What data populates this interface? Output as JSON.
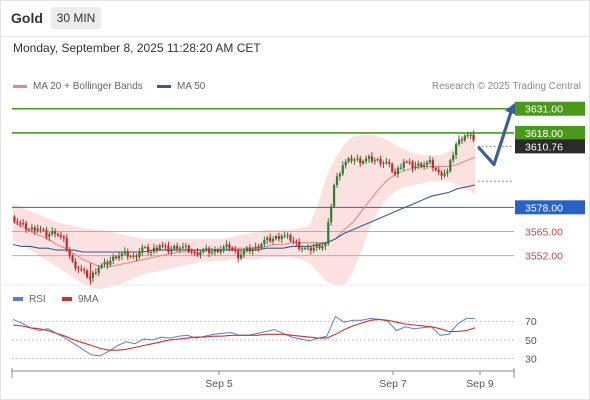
{
  "header": {
    "asset": "Gold",
    "timeframe": "30 MIN",
    "datetime": "Monday, September 8, 2025 11:28:20 AM CET"
  },
  "legend": {
    "ma20_label": "MA 20 + Bollinger Bands",
    "ma50_label": "MA 50",
    "credit": "Research © 2025 Trading Central",
    "rsi_label": "RSI",
    "rsi9_label": "9MA"
  },
  "colors": {
    "candle_up": "#2e7d32",
    "candle_down": "#c62828",
    "ma20": "#e88888",
    "bollinger_fill": "#fbd7d7",
    "ma50": "#3c5a8c",
    "resistance": "#4a9a1a",
    "support": "#e89a9a",
    "pivot": "#2962c4",
    "arrow": "#3c5f96",
    "rsi": "#5b7fd6",
    "rsi_ma": "#d32f2f"
  },
  "chart_data": [
    {
      "type": "candlestick",
      "x_axis": {
        "labels": [
          "Sep 5",
          "Sep 7",
          "Sep 9"
        ]
      },
      "y_axis": {
        "range": [
          3540,
          3640
        ]
      },
      "current_price": {
        "value": 3610.76,
        "label": "3610.76"
      },
      "levels": [
        {
          "value": 3631.0,
          "label": "3631.00",
          "kind": "resistance"
        },
        {
          "value": 3618.0,
          "label": "3618.00",
          "kind": "resistance"
        },
        {
          "value": 3578.0,
          "label": "3578.00",
          "kind": "pivot"
        },
        {
          "value": 3565.0,
          "label": "3565.00",
          "kind": "support"
        },
        {
          "value": 3552.0,
          "label": "3552.00",
          "kind": "support"
        }
      ],
      "price_path": [
        3573,
        3569,
        3566,
        3567,
        3563,
        3565,
        3560,
        3548,
        3544,
        3540,
        3546,
        3548,
        3552,
        3553,
        3551,
        3556,
        3554,
        3558,
        3555,
        3557,
        3556,
        3553,
        3555,
        3554,
        3556,
        3557,
        3552,
        3555,
        3556,
        3560,
        3561,
        3563,
        3561,
        3557,
        3555,
        3557,
        3558,
        3590,
        3601,
        3604,
        3603,
        3604,
        3603,
        3602,
        3596,
        3603,
        3600,
        3601,
        3602,
        3596,
        3597,
        3612,
        3617,
        3615
      ],
      "ma20": [
        3570,
        3568,
        3565,
        3563,
        3561,
        3558,
        3556,
        3553,
        3550,
        3548,
        3546,
        3546,
        3547,
        3548,
        3549,
        3550,
        3551,
        3552,
        3553,
        3554,
        3554,
        3555,
        3555,
        3555,
        3555,
        3556,
        3556,
        3556,
        3556,
        3557,
        3558,
        3558,
        3559,
        3559,
        3559,
        3559,
        3559,
        3561,
        3566,
        3570,
        3576,
        3582,
        3588,
        3593,
        3596,
        3598,
        3599,
        3600,
        3600,
        3600,
        3600,
        3601,
        3603,
        3605
      ],
      "bollinger_upper": [
        3580,
        3578,
        3576,
        3574,
        3572,
        3570,
        3569,
        3568,
        3567,
        3566,
        3566,
        3565,
        3564,
        3563,
        3562,
        3561,
        3561,
        3561,
        3561,
        3561,
        3561,
        3561,
        3561,
        3561,
        3561,
        3562,
        3563,
        3564,
        3565,
        3566,
        3566,
        3566,
        3566,
        3567,
        3568,
        3580,
        3595,
        3605,
        3612,
        3616,
        3617,
        3617,
        3616,
        3614,
        3611,
        3609,
        3607,
        3606,
        3606,
        3606,
        3608,
        3613,
        3618,
        3620
      ],
      "bollinger_lower": [
        3560,
        3558,
        3555,
        3552,
        3549,
        3546,
        3543,
        3540,
        3537,
        3535,
        3534,
        3535,
        3536,
        3538,
        3540,
        3542,
        3543,
        3544,
        3545,
        3546,
        3547,
        3548,
        3549,
        3549,
        3549,
        3550,
        3550,
        3550,
        3550,
        3551,
        3551,
        3551,
        3551,
        3550,
        3548,
        3543,
        3538,
        3536,
        3536,
        3543,
        3555,
        3568,
        3577,
        3583,
        3587,
        3589,
        3590,
        3591,
        3592,
        3592,
        3592,
        3590,
        3588,
        3585
      ],
      "ma50": [
        3558,
        3557,
        3557,
        3556,
        3556,
        3555,
        3555,
        3555,
        3554,
        3554,
        3554,
        3554,
        3554,
        3554,
        3554,
        3554,
        3555,
        3555,
        3555,
        3555,
        3555,
        3555,
        3555,
        3555,
        3555,
        3555,
        3555,
        3555,
        3555,
        3556,
        3556,
        3556,
        3557,
        3557,
        3557,
        3558,
        3559,
        3561,
        3564,
        3566,
        3568,
        3570,
        3572,
        3574,
        3576,
        3578,
        3580,
        3582,
        3584,
        3585,
        3586,
        3588,
        3589,
        3590
      ],
      "scenario_path": [
        3610,
        3601,
        3631
      ]
    },
    {
      "type": "line",
      "title": "RSI",
      "y_axis": {
        "ticks": [
          30,
          50,
          70
        ],
        "range": [
          20,
          82
        ]
      },
      "series": [
        {
          "name": "RSI",
          "values": [
            72,
            68,
            63,
            60,
            62,
            57,
            52,
            46,
            40,
            34,
            33,
            38,
            44,
            48,
            46,
            51,
            50,
            53,
            52,
            54,
            55,
            52,
            54,
            56,
            57,
            58,
            55,
            55,
            57,
            59,
            61,
            57,
            53,
            51,
            49,
            52,
            54,
            75,
            69,
            71,
            71,
            73,
            72,
            70,
            60,
            64,
            62,
            63,
            64,
            55,
            56,
            67,
            73,
            73
          ]
        },
        {
          "name": "9MA",
          "values": [
            66,
            65,
            63,
            62,
            60,
            57,
            54,
            50,
            47,
            44,
            41,
            39,
            39,
            40,
            42,
            44,
            46,
            48,
            50,
            51,
            52,
            53,
            53,
            54,
            54,
            55,
            55,
            55,
            55,
            56,
            56,
            56,
            55,
            54,
            53,
            52,
            52,
            56,
            61,
            65,
            68,
            71,
            72,
            71,
            69,
            67,
            66,
            65,
            64,
            62,
            59,
            59,
            60,
            63
          ]
        }
      ]
    }
  ]
}
